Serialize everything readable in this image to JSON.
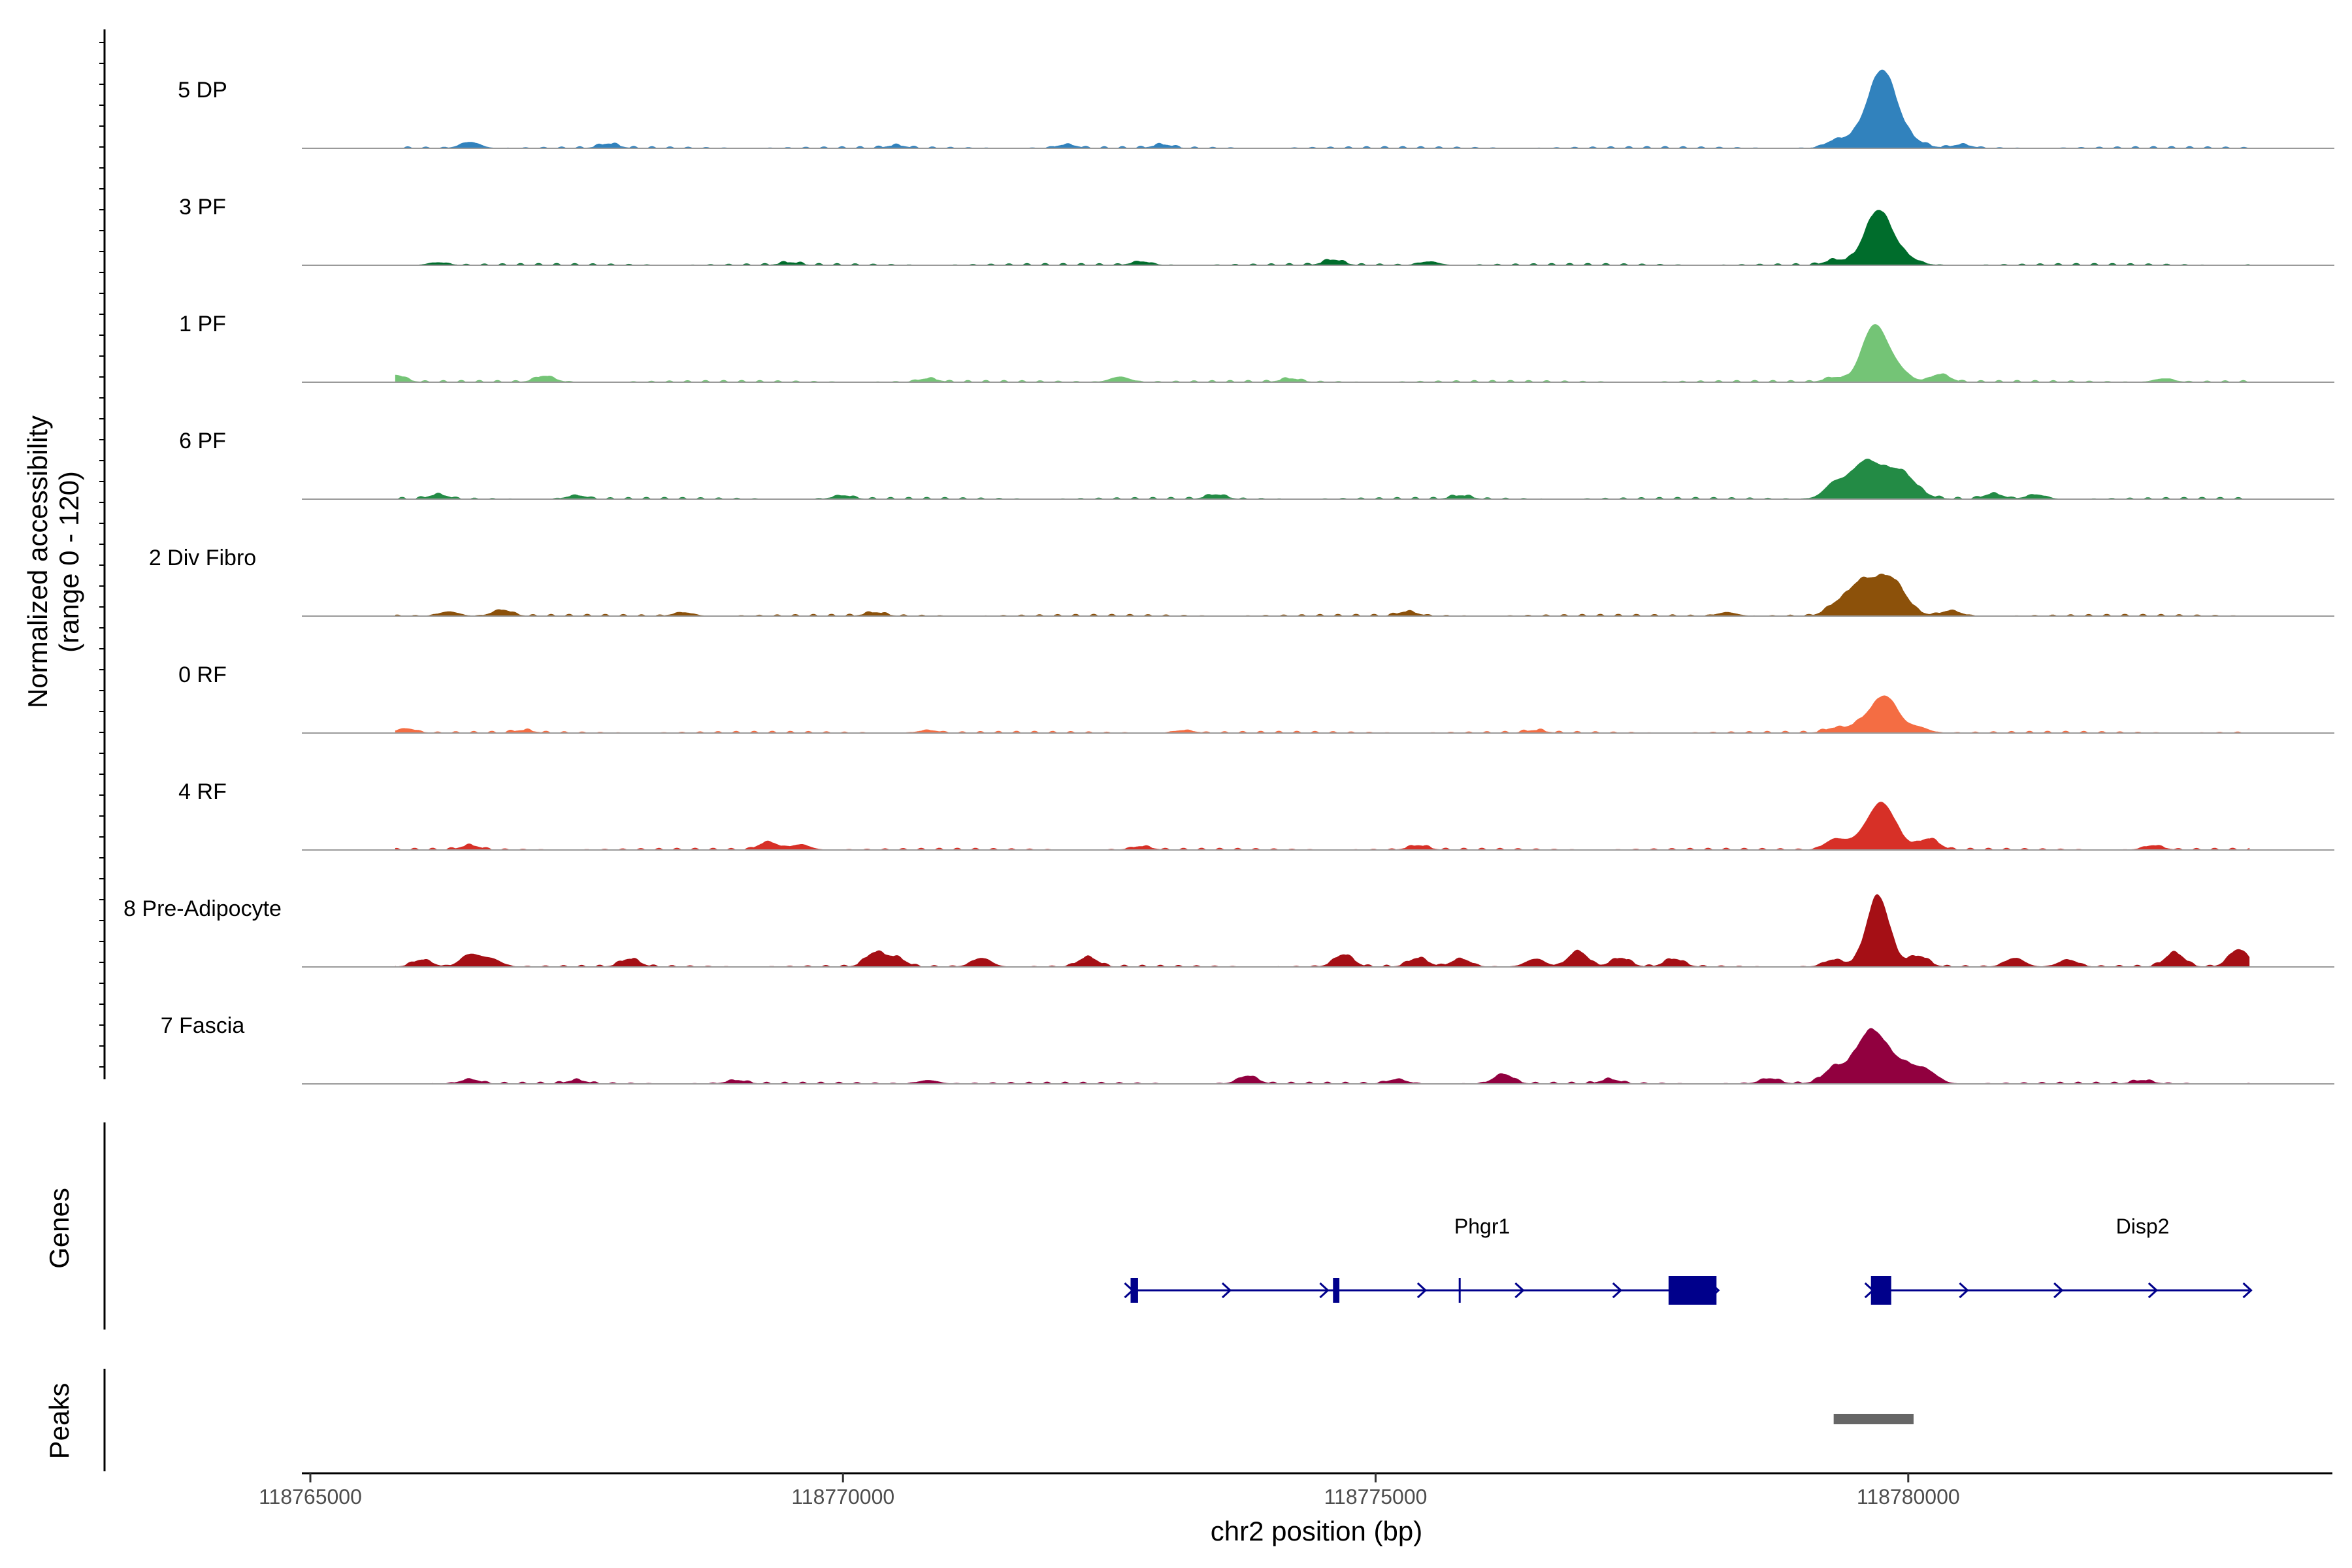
{
  "chart_data": {
    "type": "area",
    "title": "",
    "region": {
      "chrom": "chr2",
      "start": 118765000,
      "end": 118784000
    },
    "xlabel": "chr2 position (bp)",
    "ylabel_line1": "Normalized accessibility",
    "ylabel_line2": "(range 0 - 120)",
    "ylim": [
      0,
      120
    ],
    "x_ticks": [
      {
        "value": 118765000,
        "label": "118765000"
      },
      {
        "value": 118770000,
        "label": "118770000"
      },
      {
        "value": 118775000,
        "label": "118775000"
      },
      {
        "value": 118780000,
        "label": "118780000"
      }
    ],
    "series": [
      {
        "name": "5 DP",
        "color": "#3182bd",
        "peak_height": 90,
        "peak_center": 118779750,
        "peak_width": 180,
        "background": [
          [
            118766500,
            7
          ],
          [
            118767800,
            5
          ],
          [
            118770500,
            3
          ],
          [
            118772100,
            4
          ],
          [
            118773000,
            4
          ],
          [
            118779300,
            6
          ],
          [
            118780500,
            4
          ]
        ]
      },
      {
        "name": "3 PF",
        "color": "#006d2c",
        "peak_height": 66,
        "peak_center": 118779750,
        "peak_width": 160,
        "background": [
          [
            118766200,
            3
          ],
          [
            118769500,
            3
          ],
          [
            118772800,
            4
          ],
          [
            118774600,
            6
          ],
          [
            118775500,
            4
          ],
          [
            118779300,
            5
          ]
        ]
      },
      {
        "name": "1 PF",
        "color": "#74c476",
        "peak_height": 78,
        "peak_center": 118779730,
        "peak_width": 140,
        "background": [
          [
            118765800,
            8
          ],
          [
            118767200,
            7
          ],
          [
            118770800,
            4
          ],
          [
            118772600,
            6
          ],
          [
            118774200,
            4
          ],
          [
            118779300,
            5
          ],
          [
            118780300,
            9
          ],
          [
            118782400,
            4
          ]
        ]
      },
      {
        "name": "6 PF",
        "color": "#238b45",
        "peak_height": 60,
        "peak_center": 118779730,
        "peak_width": 220,
        "background": [
          [
            118766200,
            5
          ],
          [
            118767500,
            4
          ],
          [
            118770000,
            4
          ],
          [
            118773500,
            5
          ],
          [
            118775800,
            4
          ],
          [
            118779300,
            14
          ],
          [
            118780800,
            6
          ],
          [
            118781200,
            5
          ]
        ]
      },
      {
        "name": "2 Div Fibro",
        "color": "#8c510a",
        "peak_height": 70,
        "peak_center": 118779700,
        "peak_width": 190,
        "background": [
          [
            118766300,
            5
          ],
          [
            118766800,
            7
          ],
          [
            118768500,
            4
          ],
          [
            118770300,
            4
          ],
          [
            118775300,
            5
          ],
          [
            118778300,
            4
          ],
          [
            118779300,
            8
          ],
          [
            118780400,
            6
          ]
        ]
      },
      {
        "name": "0 RF",
        "color": "#f46d43",
        "peak_height": 50,
        "peak_center": 118779730,
        "peak_width": 150,
        "background": [
          [
            118765900,
            5
          ],
          [
            118767000,
            3
          ],
          [
            118770800,
            3
          ],
          [
            118773200,
            3
          ],
          [
            118776500,
            3
          ],
          [
            118779300,
            5
          ],
          [
            118780100,
            6
          ]
        ]
      },
      {
        "name": "4 RF",
        "color": "#d73027",
        "peak_height": 56,
        "peak_center": 118779720,
        "peak_width": 170,
        "background": [
          [
            118766500,
            5
          ],
          [
            118769300,
            9
          ],
          [
            118769600,
            6
          ],
          [
            118772800,
            4
          ],
          [
            118775400,
            5
          ],
          [
            118779300,
            10
          ],
          [
            118780200,
            12
          ],
          [
            118782300,
            5
          ]
        ]
      },
      {
        "name": "8 Pre-Adipocyte",
        "color": "#a50f15",
        "peak_height": 82,
        "peak_center": 118779720,
        "peak_width": 120,
        "background": [
          [
            118766050,
            8
          ],
          [
            118766500,
            14
          ],
          [
            118766700,
            9
          ],
          [
            118768000,
            9
          ],
          [
            118770300,
            16
          ],
          [
            118770500,
            10
          ],
          [
            118771300,
            10
          ],
          [
            118772300,
            11
          ],
          [
            118774700,
            14
          ],
          [
            118775400,
            10
          ],
          [
            118775800,
            9
          ],
          [
            118776500,
            9
          ],
          [
            118776900,
            18
          ],
          [
            118777300,
            10
          ],
          [
            118777800,
            9
          ],
          [
            118779300,
            8
          ],
          [
            118780100,
            12
          ],
          [
            118781000,
            10
          ],
          [
            118781500,
            8
          ],
          [
            118782500,
            16
          ],
          [
            118783100,
            20
          ]
        ]
      },
      {
        "name": "7 Fascia",
        "color": "#91003f",
        "peak_height": 66,
        "peak_center": 118779720,
        "peak_width": 230,
        "background": [
          [
            118766500,
            5
          ],
          [
            118767500,
            4
          ],
          [
            118769000,
            4
          ],
          [
            118770800,
            4
          ],
          [
            118773800,
            9
          ],
          [
            118775200,
            5
          ],
          [
            118776200,
            11
          ],
          [
            118777200,
            5
          ],
          [
            118778700,
            6
          ],
          [
            118779300,
            12
          ],
          [
            118780200,
            8
          ],
          [
            118782200,
            4
          ]
        ]
      }
    ],
    "genes": [
      {
        "name": "Phgr1",
        "start": 118772700,
        "end": 118778200,
        "strand": "+",
        "exons": [
          [
            118772700,
            118772770
          ],
          [
            118774600,
            118774660
          ],
          [
            118775780,
            118775790
          ],
          [
            118777750,
            118778200
          ]
        ]
      },
      {
        "name": "Disp2",
        "start": 118779650,
        "end": 118783200,
        "strand": "+",
        "exons": [
          [
            118779650,
            118779840
          ]
        ]
      }
    ],
    "peaks": [
      {
        "start": 118779300,
        "end": 118780050
      }
    ],
    "panel_labels": {
      "genes": "Genes",
      "peaks": "Peaks"
    },
    "gene_color": "#00008b",
    "peak_color": "#666666"
  }
}
